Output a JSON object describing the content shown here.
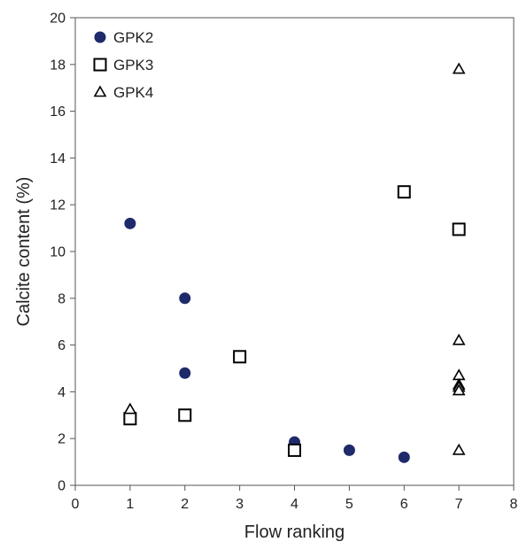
{
  "chart_data": {
    "type": "scatter",
    "xlabel": "Flow ranking",
    "ylabel": "Calcite content (%)",
    "xlim": [
      0,
      8
    ],
    "ylim": [
      0,
      20
    ],
    "x_ticks": [
      0,
      1,
      2,
      3,
      4,
      5,
      6,
      7,
      8
    ],
    "y_ticks": [
      0,
      2,
      4,
      6,
      8,
      10,
      12,
      14,
      16,
      18,
      20
    ],
    "grid": false,
    "legend_position": "top-left",
    "series": [
      {
        "name": "GPK2",
        "marker": "circle",
        "color": "#1f2a6b",
        "points": [
          [
            1,
            11.2
          ],
          [
            2,
            8.0
          ],
          [
            2,
            4.8
          ],
          [
            4,
            1.85
          ],
          [
            5,
            1.5
          ],
          [
            6,
            1.2
          ]
        ]
      },
      {
        "name": "GPK3",
        "marker": "square",
        "color": "#000000",
        "points": [
          [
            1,
            2.85
          ],
          [
            2,
            3.0
          ],
          [
            3,
            5.5
          ],
          [
            4,
            1.5
          ],
          [
            6,
            12.55
          ],
          [
            7,
            10.95
          ]
        ]
      },
      {
        "name": "GPK4",
        "marker": "triangle",
        "color": "#000000",
        "points": [
          [
            1,
            3.25
          ],
          [
            7,
            17.8
          ],
          [
            7,
            6.2
          ],
          [
            7,
            4.7
          ],
          [
            7,
            4.3
          ],
          [
            7,
            4.2
          ],
          [
            7,
            4.05
          ],
          [
            7,
            1.5
          ]
        ]
      }
    ]
  }
}
